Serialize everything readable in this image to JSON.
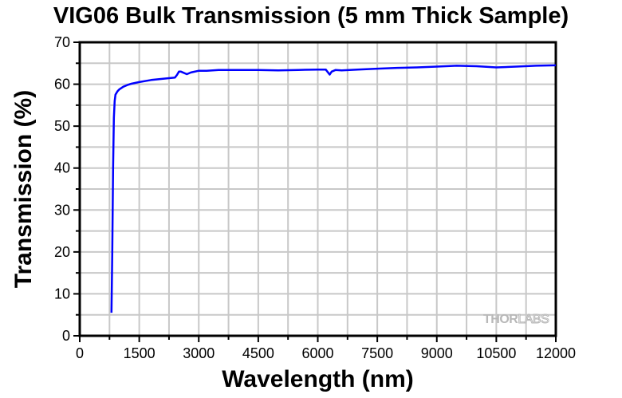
{
  "chart_data": {
    "type": "line",
    "title": "VIG06 Bulk Transmission (5 mm Thick Sample)",
    "xlabel": "Wavelength (nm)",
    "ylabel": "Transmission (%)",
    "xlim": [
      0,
      12000
    ],
    "ylim": [
      0,
      70
    ],
    "xticks": [
      "0",
      "1500",
      "3000",
      "4500",
      "6000",
      "7500",
      "9000",
      "10500",
      "12000"
    ],
    "yticks": [
      "0",
      "10",
      "20",
      "30",
      "40",
      "50",
      "60",
      "70"
    ],
    "grid": true,
    "series": [
      {
        "name": "VIG06",
        "color": "#0000ff",
        "x": [
          800,
          820,
          840,
          860,
          880,
          900,
          950,
          1000,
          1100,
          1200,
          1300,
          1500,
          1800,
          2000,
          2200,
          2400,
          2450,
          2500,
          2550,
          2700,
          2800,
          3000,
          3200,
          3500,
          4000,
          4500,
          5000,
          5500,
          6000,
          6200,
          6300,
          6350,
          6450,
          6600,
          7000,
          7500,
          8000,
          8500,
          9000,
          9500,
          10000,
          10500,
          11000,
          11500,
          12000
        ],
        "y": [
          5.5,
          20,
          40,
          52,
          56,
          57.5,
          58.3,
          58.8,
          59.4,
          59.8,
          60.1,
          60.5,
          61.0,
          61.2,
          61.4,
          61.6,
          62.2,
          63.0,
          63.0,
          62.4,
          62.8,
          63.2,
          63.2,
          63.4,
          63.4,
          63.4,
          63.3,
          63.4,
          63.5,
          63.5,
          62.3,
          63.0,
          63.4,
          63.3,
          63.5,
          63.7,
          63.9,
          64.0,
          64.2,
          64.4,
          64.3,
          64.0,
          64.2,
          64.4,
          64.5
        ]
      }
    ]
  },
  "logo": {
    "text_bold": "THOR",
    "text_light": "LABS"
  }
}
